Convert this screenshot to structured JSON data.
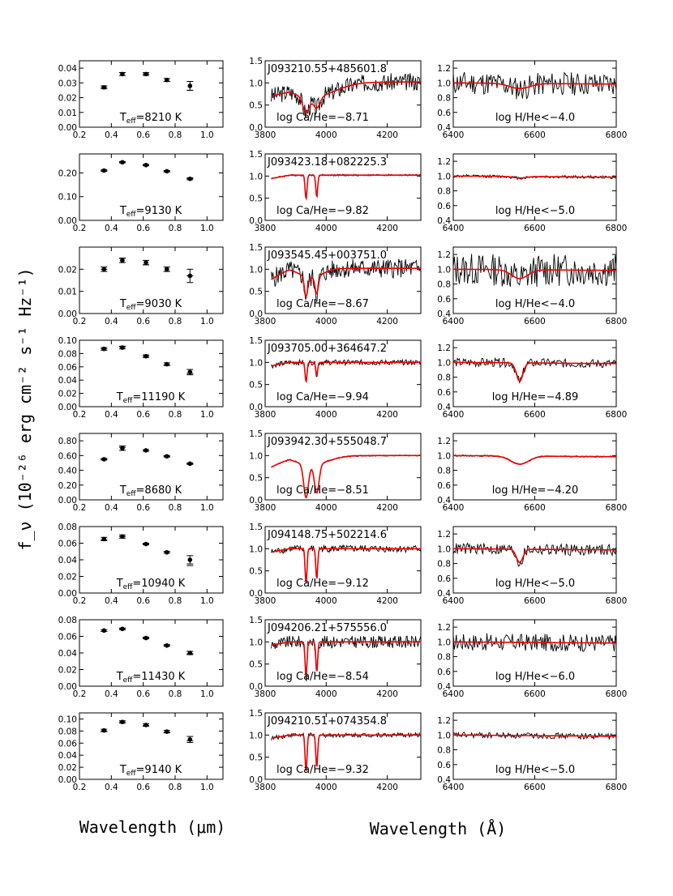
{
  "figure": {
    "ylabel": "f_ν (10⁻²⁶ erg cm⁻² s⁻¹ Hz⁻¹)",
    "xlabel_phot": "Wavelength (μm)",
    "xlabel_spec": "Wavelength (Å)"
  },
  "axes": {
    "phot_x": {
      "range": [
        0.2,
        1.1
      ],
      "ticks": [
        0.2,
        0.4,
        0.6,
        0.8,
        1.0
      ],
      "tick_labels": [
        "0.2",
        "0.4",
        "0.6",
        "0.8",
        "1.0"
      ]
    },
    "caii_x": {
      "range": [
        3800,
        4310
      ],
      "ticks": [
        3800,
        4000,
        4200
      ],
      "tick_labels": [
        "3800",
        "4000",
        "4200"
      ]
    },
    "ha_x": {
      "range": [
        6400,
        6800
      ],
      "ticks": [
        6400,
        6600,
        6800
      ],
      "tick_labels": [
        "6400",
        "6600",
        "6800"
      ]
    },
    "caii_y": {
      "range": [
        0,
        1.5
      ],
      "ticks": [
        0,
        0.5,
        1.0,
        1.5
      ],
      "tick_labels": [
        "0.0",
        "0.5",
        "1.0",
        "1.5"
      ]
    },
    "ha_y": {
      "range": [
        0.4,
        1.3
      ],
      "ticks": [
        0.4,
        0.6,
        0.8,
        1.0,
        1.2
      ],
      "tick_labels": [
        "0.4",
        "0.6",
        "0.8",
        "1.0",
        "1.2"
      ]
    }
  },
  "colors": {
    "model": "#ee0000",
    "data": "#000000"
  },
  "chart_data": [
    {
      "type": "scatter",
      "name": "J093210.55+485601.8",
      "teff_label": "T_eff=8210 K",
      "ca_label": "log Ca/He=−8.71",
      "h_label": "log H/He<−4.0",
      "phot": {
        "x": [
          0.354,
          0.469,
          0.617,
          0.748,
          0.893
        ],
        "y": [
          0.027,
          0.036,
          0.036,
          0.032,
          0.028
        ],
        "model": [
          0.027,
          0.037,
          0.036,
          0.031,
          0.025
        ],
        "err": [
          0.001,
          0.001,
          0.001,
          0.001,
          0.003
        ]
      },
      "phot_y": {
        "range": [
          0,
          0.045
        ],
        "ticks": [
          0,
          0.01,
          0.02,
          0.03,
          0.04
        ],
        "tick_labels": [
          "0.00",
          "0.01",
          "0.02",
          "0.03",
          "0.04"
        ]
      },
      "caii": {
        "depth_k": 0.35,
        "depth_h": 0.25,
        "width": 30,
        "continuum": 1.02,
        "noise": 0.2
      },
      "halpha": {
        "depth": 0.07,
        "width": 25,
        "noise": 0.16
      }
    },
    {
      "type": "scatter",
      "name": "J093423.18+082225.3",
      "teff_label": "T_eff=9130 K",
      "ca_label": "log Ca/He=−9.82",
      "h_label": "log H/He<−5.0",
      "phot": {
        "x": [
          0.354,
          0.469,
          0.617,
          0.748,
          0.893
        ],
        "y": [
          0.21,
          0.245,
          0.233,
          0.207,
          0.175
        ],
        "model": [
          0.209,
          0.246,
          0.232,
          0.206,
          0.176
        ],
        "err": [
          0.003,
          0.003,
          0.003,
          0.003,
          0.004
        ]
      },
      "phot_y": {
        "range": [
          0,
          0.28
        ],
        "ticks": [
          0,
          0.1,
          0.2
        ],
        "tick_labels": [
          "0.00",
          "0.10",
          "0.20"
        ]
      },
      "caii": {
        "depth_k": 0.55,
        "depth_h": 0.5,
        "width": 6,
        "continuum": 1.02,
        "noise": 0.02
      },
      "halpha": {
        "depth": 0.02,
        "width": 15,
        "noise": 0.02
      }
    },
    {
      "type": "scatter",
      "name": "J093545.45+003751.0",
      "teff_label": "T_eff=9030 K",
      "ca_label": "log Ca/He=−8.67",
      "h_label": "log H/He<−4.0",
      "phot": {
        "x": [
          0.354,
          0.469,
          0.617,
          0.748,
          0.893
        ],
        "y": [
          0.02,
          0.024,
          0.023,
          0.02,
          0.017
        ],
        "model": [
          0.02,
          0.025,
          0.022,
          0.019,
          0.017
        ],
        "err": [
          0.001,
          0.001,
          0.001,
          0.001,
          0.003
        ]
      },
      "phot_y": {
        "range": [
          0,
          0.03
        ],
        "ticks": [
          0,
          0.01,
          0.02
        ],
        "tick_labels": [
          "0.00",
          "0.01",
          "0.02"
        ]
      },
      "caii": {
        "depth_k": 0.45,
        "depth_h": 0.4,
        "width": 15,
        "continuum": 1.02,
        "noise": 0.22
      },
      "halpha": {
        "depth": 0.12,
        "width": 20,
        "noise": 0.22
      }
    },
    {
      "type": "scatter",
      "name": "J093705.00+364647.2",
      "teff_label": "T_eff=11190 K",
      "ca_label": "log Ca/He=−9.94",
      "h_label": "log H/He=−4.89",
      "phot": {
        "x": [
          0.354,
          0.469,
          0.617,
          0.748,
          0.893
        ],
        "y": [
          0.087,
          0.089,
          0.076,
          0.064,
          0.052
        ],
        "model": [
          0.087,
          0.09,
          0.076,
          0.063,
          0.05
        ],
        "err": [
          0.002,
          0.002,
          0.002,
          0.002,
          0.004
        ]
      },
      "phot_y": {
        "range": [
          0,
          0.1
        ],
        "ticks": [
          0,
          0.02,
          0.04,
          0.06,
          0.08,
          0.1
        ],
        "tick_labels": [
          "0.00",
          "0.02",
          "0.04",
          "0.06",
          "0.08",
          "0.10"
        ]
      },
      "caii": {
        "depth_k": 0.45,
        "depth_h": 0.3,
        "width": 3,
        "continuum": 1.0,
        "noise": 0.06
      },
      "halpha": {
        "depth": 0.25,
        "width": 8,
        "noise": 0.06
      }
    },
    {
      "type": "scatter",
      "name": "J093942.30+555048.7",
      "teff_label": "T_eff=8680 K",
      "ca_label": "log Ca/He=−8.51",
      "h_label": "log H/He=−4.20",
      "phot": {
        "x": [
          0.354,
          0.469,
          0.617,
          0.748,
          0.893
        ],
        "y": [
          0.55,
          0.7,
          0.67,
          0.59,
          0.49
        ],
        "model": [
          0.55,
          0.71,
          0.66,
          0.59,
          0.49
        ],
        "err": [
          0.01,
          0.03,
          0.01,
          0.01,
          0.01
        ]
      },
      "phot_y": {
        "range": [
          0,
          0.9
        ],
        "ticks": [
          0,
          0.2,
          0.4,
          0.6,
          0.8
        ],
        "tick_labels": [
          "0.00",
          "0.20",
          "0.40",
          "0.60",
          "0.80"
        ]
      },
      "caii": {
        "depth_k": 0.75,
        "depth_h": 0.65,
        "width": 22,
        "continuum": 1.0,
        "noise": 0.015
      },
      "halpha": {
        "depth": 0.11,
        "width": 22,
        "noise": 0.01
      }
    },
    {
      "type": "scatter",
      "name": "J094148.75+502214.6",
      "teff_label": "T_eff=10940 K",
      "ca_label": "log Ca/He=−9.12",
      "h_label": "log H/He<−5.0",
      "phot": {
        "x": [
          0.354,
          0.469,
          0.617,
          0.748,
          0.893
        ],
        "y": [
          0.065,
          0.068,
          0.059,
          0.049,
          0.04
        ],
        "model": [
          0.064,
          0.068,
          0.059,
          0.05,
          0.033
        ],
        "err": [
          0.002,
          0.002,
          0.001,
          0.001,
          0.005
        ]
      },
      "phot_y": {
        "range": [
          0,
          0.08
        ],
        "ticks": [
          0,
          0.02,
          0.04,
          0.06,
          0.08
        ],
        "tick_labels": [
          "0.00",
          "0.02",
          "0.04",
          "0.06",
          "0.08"
        ]
      },
      "caii": {
        "depth_k": 0.8,
        "depth_h": 0.7,
        "width": 4,
        "continuum": 1.0,
        "noise": 0.08
      },
      "halpha": {
        "depth": 0.18,
        "width": 8,
        "noise": 0.08
      }
    },
    {
      "type": "scatter",
      "name": "J094206.21+575556.0",
      "teff_label": "T_eff=11430 K",
      "ca_label": "log Ca/He=−8.54",
      "h_label": "log H/He<−6.0",
      "phot": {
        "x": [
          0.354,
          0.469,
          0.617,
          0.748,
          0.893
        ],
        "y": [
          0.067,
          0.069,
          0.058,
          0.049,
          0.04
        ],
        "model": [
          0.066,
          0.069,
          0.058,
          0.049,
          0.039
        ],
        "err": [
          0.001,
          0.001,
          0.001,
          0.001,
          0.002
        ]
      },
      "phot_y": {
        "range": [
          0,
          0.08
        ],
        "ticks": [
          0,
          0.02,
          0.04,
          0.06,
          0.08
        ],
        "tick_labels": [
          "0.00",
          "0.02",
          "0.04",
          "0.06",
          "0.08"
        ]
      },
      "caii": {
        "depth_k": 0.8,
        "depth_h": 0.7,
        "width": 5,
        "continuum": 1.0,
        "noise": 0.14
      },
      "halpha": {
        "depth": 0.0,
        "width": 10,
        "noise": 0.12
      }
    },
    {
      "type": "scatter",
      "name": "J094210.51+074354.8",
      "teff_label": "T_eff=9140 K",
      "ca_label": "log Ca/He=−9.32",
      "h_label": "log H/He<−5.0",
      "phot": {
        "x": [
          0.354,
          0.469,
          0.617,
          0.748,
          0.893
        ],
        "y": [
          0.081,
          0.095,
          0.09,
          0.079,
          0.066
        ],
        "model": [
          0.08,
          0.095,
          0.089,
          0.078,
          0.064
        ],
        "err": [
          0.002,
          0.002,
          0.002,
          0.002,
          0.005
        ]
      },
      "phot_y": {
        "range": [
          0,
          0.11
        ],
        "ticks": [
          0,
          0.02,
          0.04,
          0.06,
          0.08,
          0.1
        ],
        "tick_labels": [
          "0.00",
          "0.02",
          "0.04",
          "0.06",
          "0.08",
          "0.10"
        ]
      },
      "caii": {
        "depth_k": 0.85,
        "depth_h": 0.75,
        "width": 8,
        "continuum": 1.0,
        "noise": 0.05
      },
      "halpha": {
        "depth": 0.0,
        "width": 10,
        "noise": 0.04
      }
    }
  ]
}
